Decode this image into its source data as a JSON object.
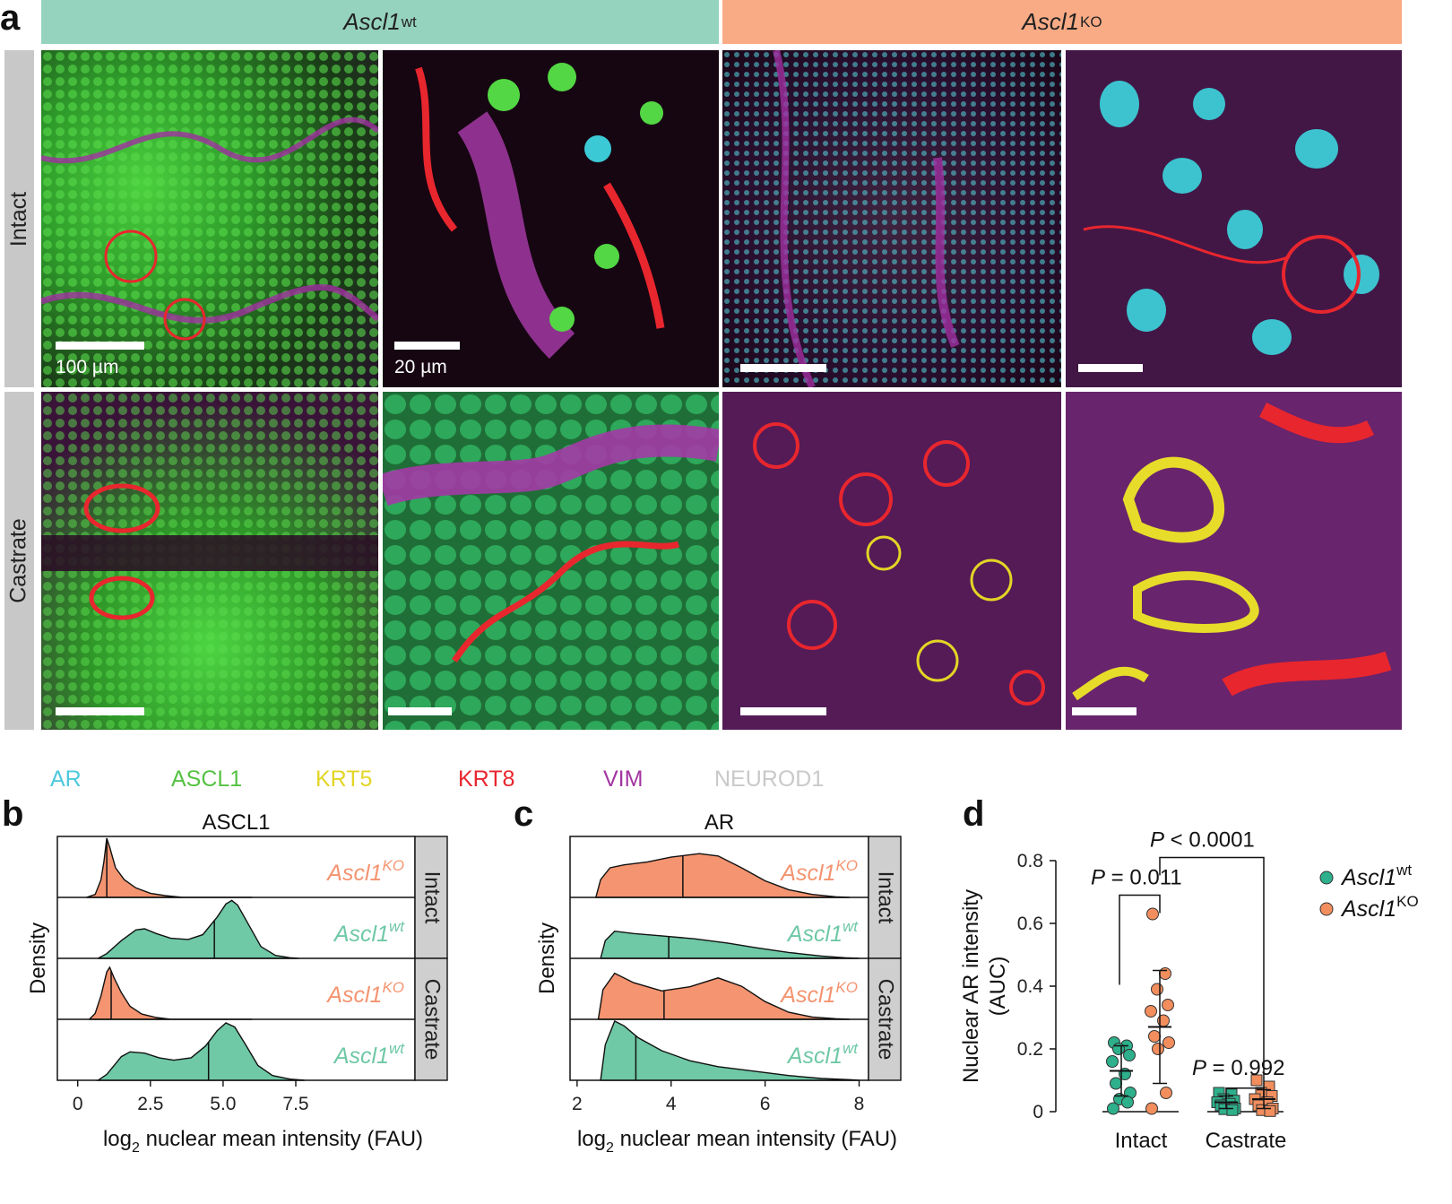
{
  "panel_letters": {
    "a": "a",
    "b": "b",
    "c": "c",
    "d": "d"
  },
  "panel_a": {
    "columns": [
      {
        "gene": "Ascl1",
        "genotype": "wt",
        "color": "#96d3be"
      },
      {
        "gene": "Ascl1",
        "genotype": "KO",
        "color": "#f9ab86"
      }
    ],
    "rows": [
      "Intact",
      "Castrate"
    ],
    "scale_labels": [
      "100 µm",
      "20 µm"
    ],
    "legend": [
      {
        "label": "AR",
        "color": "#4ec9dd"
      },
      {
        "label": "ASCL1",
        "color": "#55c243"
      },
      {
        "label": "KRT5",
        "color": "#e3d525"
      },
      {
        "label": "KRT8",
        "color": "#e8262e"
      },
      {
        "label": "VIM",
        "color": "#a335a2"
      },
      {
        "label": "NEUROD1",
        "color": "#c9c9c9"
      }
    ]
  },
  "chart_data": [
    {
      "panel": "b",
      "type": "area",
      "title": "ASCL1",
      "xlabel": "log2 nuclear mean intensity (FAU)",
      "ylabel": "Density",
      "xlim": [
        -0.7,
        11.6
      ],
      "xticks": [
        0,
        2.5,
        5.0,
        7.5
      ],
      "xtick_labels": [
        "0",
        "2.5",
        "5.0",
        "7.5"
      ],
      "facets": [
        "Intact",
        "Castrate"
      ],
      "series": [
        {
          "name": "Ascl1KO",
          "facet": "Intact",
          "color": "#f49470",
          "median": 1.0,
          "density": [
            [
              0.3,
              0
            ],
            [
              0.6,
              0.05
            ],
            [
              0.8,
              0.3
            ],
            [
              0.9,
              0.6
            ],
            [
              1.0,
              1.0
            ],
            [
              1.1,
              0.85
            ],
            [
              1.3,
              0.5
            ],
            [
              1.6,
              0.3
            ],
            [
              2.0,
              0.16
            ],
            [
              2.5,
              0.07
            ],
            [
              3.0,
              0.03
            ],
            [
              3.6,
              0
            ],
            [
              6.0,
              0
            ]
          ]
        },
        {
          "name": "Ascl1wt",
          "facet": "Intact",
          "color": "#6fc8a6",
          "median": 4.7,
          "density": [
            [
              0.7,
              0
            ],
            [
              1.0,
              0.08
            ],
            [
              1.5,
              0.3
            ],
            [
              2.0,
              0.48
            ],
            [
              2.3,
              0.5
            ],
            [
              2.7,
              0.42
            ],
            [
              3.2,
              0.34
            ],
            [
              3.8,
              0.32
            ],
            [
              4.3,
              0.4
            ],
            [
              4.8,
              0.7
            ],
            [
              5.1,
              0.92
            ],
            [
              5.3,
              0.98
            ],
            [
              5.5,
              0.9
            ],
            [
              5.9,
              0.55
            ],
            [
              6.3,
              0.2
            ],
            [
              6.8,
              0.05
            ],
            [
              7.3,
              0.01
            ],
            [
              7.6,
              0
            ]
          ]
        },
        {
          "name": "Ascl1KO",
          "facet": "Castrate",
          "color": "#f49470",
          "median": 1.15,
          "density": [
            [
              0.4,
              0
            ],
            [
              0.6,
              0.1
            ],
            [
              0.8,
              0.4
            ],
            [
              1.0,
              0.8
            ],
            [
              1.1,
              0.88
            ],
            [
              1.25,
              0.7
            ],
            [
              1.5,
              0.45
            ],
            [
              1.8,
              0.22
            ],
            [
              2.2,
              0.09
            ],
            [
              2.7,
              0.03
            ],
            [
              3.2,
              0
            ],
            [
              6.0,
              0
            ]
          ]
        },
        {
          "name": "Ascl1wt",
          "facet": "Castrate",
          "color": "#6fc8a6",
          "median": 4.5,
          "density": [
            [
              0.7,
              0
            ],
            [
              1.0,
              0.1
            ],
            [
              1.5,
              0.4
            ],
            [
              1.8,
              0.48
            ],
            [
              2.3,
              0.46
            ],
            [
              2.8,
              0.38
            ],
            [
              3.3,
              0.34
            ],
            [
              3.9,
              0.38
            ],
            [
              4.4,
              0.58
            ],
            [
              4.8,
              0.84
            ],
            [
              5.1,
              0.97
            ],
            [
              5.4,
              0.9
            ],
            [
              5.8,
              0.58
            ],
            [
              6.2,
              0.25
            ],
            [
              6.7,
              0.08
            ],
            [
              7.3,
              0.02
            ],
            [
              7.8,
              0
            ]
          ]
        }
      ]
    },
    {
      "panel": "c",
      "type": "area",
      "title": "AR",
      "xlabel": "log2 nuclear mean intensity (FAU)",
      "ylabel": "Density",
      "xlim": [
        1.85,
        8.2
      ],
      "xticks": [
        2,
        4,
        6,
        8
      ],
      "xtick_labels": [
        "2",
        "4",
        "6",
        "8"
      ],
      "facets": [
        "Intact",
        "Castrate"
      ],
      "series": [
        {
          "name": "Ascl1KO",
          "facet": "Intact",
          "color": "#f49470",
          "median": 4.25,
          "density": [
            [
              2.4,
              0
            ],
            [
              2.5,
              0.3
            ],
            [
              2.7,
              0.5
            ],
            [
              3.0,
              0.55
            ],
            [
              3.5,
              0.6
            ],
            [
              4.0,
              0.68
            ],
            [
              4.6,
              0.74
            ],
            [
              5.0,
              0.7
            ],
            [
              5.5,
              0.5
            ],
            [
              6.0,
              0.28
            ],
            [
              6.5,
              0.13
            ],
            [
              7.0,
              0.05
            ],
            [
              7.5,
              0.01
            ],
            [
              7.8,
              0
            ]
          ]
        },
        {
          "name": "Ascl1wt",
          "facet": "Intact",
          "color": "#6fc8a6",
          "median": 3.95,
          "density": [
            [
              2.5,
              0
            ],
            [
              2.6,
              0.3
            ],
            [
              2.8,
              0.46
            ],
            [
              3.2,
              0.42
            ],
            [
              3.8,
              0.38
            ],
            [
              4.5,
              0.33
            ],
            [
              5.2,
              0.26
            ],
            [
              5.8,
              0.18
            ],
            [
              6.5,
              0.1
            ],
            [
              7.2,
              0.04
            ],
            [
              7.7,
              0.01
            ],
            [
              8.0,
              0
            ]
          ]
        },
        {
          "name": "Ascl1KO",
          "facet": "Castrate",
          "color": "#f49470",
          "median": 3.85,
          "density": [
            [
              2.45,
              0
            ],
            [
              2.55,
              0.5
            ],
            [
              2.8,
              0.78
            ],
            [
              3.2,
              0.62
            ],
            [
              3.8,
              0.48
            ],
            [
              4.4,
              0.55
            ],
            [
              5.0,
              0.7
            ],
            [
              5.5,
              0.56
            ],
            [
              6.0,
              0.3
            ],
            [
              6.5,
              0.12
            ],
            [
              7.0,
              0.04
            ],
            [
              7.5,
              0.01
            ],
            [
              7.8,
              0
            ]
          ]
        },
        {
          "name": "Ascl1wt",
          "facet": "Castrate",
          "color": "#6fc8a6",
          "median": 3.25,
          "density": [
            [
              2.5,
              0
            ],
            [
              2.6,
              0.6
            ],
            [
              2.8,
              1.0
            ],
            [
              3.0,
              0.92
            ],
            [
              3.3,
              0.72
            ],
            [
              3.8,
              0.5
            ],
            [
              4.4,
              0.33
            ],
            [
              5.0,
              0.23
            ],
            [
              5.8,
              0.15
            ],
            [
              6.5,
              0.08
            ],
            [
              7.2,
              0.03
            ],
            [
              7.8,
              0.01
            ],
            [
              8.0,
              0
            ]
          ]
        }
      ]
    },
    {
      "panel": "d",
      "type": "scatter",
      "ylabel_lines": [
        "Nuclear AR intensity",
        "(AUC)"
      ],
      "ylim": [
        0,
        0.8
      ],
      "yticks": [
        0,
        0.2,
        0.4,
        0.6,
        0.8
      ],
      "ytick_labels": [
        "0",
        "0.2",
        "0.4",
        "0.6",
        "0.8"
      ],
      "categories": [
        "Intact",
        "Castrate"
      ],
      "legend": [
        {
          "gene": "Ascl1",
          "genotype": "wt",
          "color": "#2db08b"
        },
        {
          "gene": "Ascl1",
          "genotype": "KO",
          "color": "#f28e5e"
        }
      ],
      "groups": [
        {
          "category": "Intact",
          "genotype": "wt",
          "marker": "circle",
          "color": "#2db08b",
          "mean": 0.13,
          "sd": 0.08,
          "values": [
            0.22,
            0.21,
            0.2,
            0.18,
            0.16,
            0.12,
            0.09,
            0.06,
            0.04,
            0.03,
            0.01
          ]
        },
        {
          "category": "Intact",
          "genotype": "KO",
          "marker": "circle",
          "color": "#f28e5e",
          "mean": 0.27,
          "sd": 0.18,
          "values": [
            0.63,
            0.44,
            0.39,
            0.34,
            0.32,
            0.29,
            0.24,
            0.22,
            0.2,
            0.06,
            0.01
          ]
        },
        {
          "category": "Castrate",
          "genotype": "wt",
          "marker": "square",
          "color": "#2db08b",
          "mean": 0.03,
          "sd": 0.02,
          "values": [
            0.06,
            0.055,
            0.04,
            0.035,
            0.03,
            0.025,
            0.02,
            0.01,
            0.008,
            0.005
          ]
        },
        {
          "category": "Castrate",
          "genotype": "KO",
          "marker": "square",
          "color": "#f28e5e",
          "mean": 0.04,
          "sd": 0.03,
          "values": [
            0.1,
            0.08,
            0.06,
            0.05,
            0.04,
            0.03,
            0.02,
            0.01,
            0.005,
            0.002
          ]
        }
      ],
      "annotations": [
        {
          "label": "P = 0.011",
          "compare": [
            "Intact wt",
            "Intact KO"
          ]
        },
        {
          "label": "P < 0.0001",
          "compare": [
            "Intact KO",
            "Castrate KO"
          ]
        },
        {
          "label": "P = 0.992",
          "compare": [
            "Castrate wt",
            "Castrate KO"
          ]
        }
      ]
    }
  ]
}
